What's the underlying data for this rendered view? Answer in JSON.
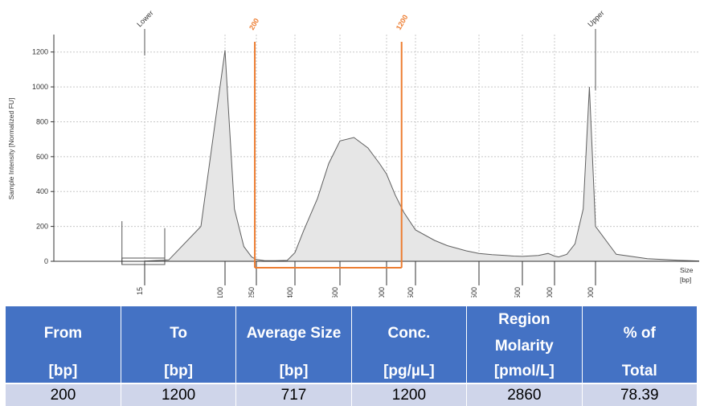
{
  "chart_data": {
    "type": "area",
    "xlabel_line1": "Size",
    "xlabel_line2": "[bp]",
    "ylabel": "Sample Intensity [Normalized FU]",
    "yticks": [
      0,
      200,
      400,
      600,
      800,
      1000,
      1200
    ],
    "ylim": [
      0,
      1300
    ],
    "xticks": [
      "15",
      "100",
      "250",
      "400",
      "600",
      "1000",
      "1500",
      "2500",
      "3500",
      "5000",
      "10000"
    ],
    "grid": true,
    "markers": [
      {
        "label": "Lower",
        "position": "15"
      },
      {
        "label": "Upper",
        "position": "10000"
      }
    ],
    "region": {
      "from_label": "200",
      "to_label": "1200",
      "color": "#ed7d31"
    },
    "series": [
      {
        "tick_positions": [
          0,
          0.3,
          0.7,
          1,
          1.1,
          1.3,
          1.6,
          1.85,
          2,
          2.2,
          2.5,
          2.8,
          3,
          3.2,
          3.5,
          3.75,
          4,
          4.3,
          4.6,
          4.85,
          5,
          5.3,
          5.6,
          6,
          6.3,
          6.5,
          6.8,
          7,
          7.3,
          7.5,
          7.8,
          8,
          8.5,
          8.8,
          9,
          9.1,
          9.3,
          9.5,
          9.7,
          9.85,
          10,
          10.2,
          10.5,
          10.8,
          11
        ],
        "y": [
          1,
          8,
          200,
          1210,
          900,
          300,
          85,
          25,
          10,
          4,
          3,
          5,
          50,
          180,
          360,
          560,
          690,
          710,
          650,
          560,
          500,
          380,
          280,
          180,
          120,
          90,
          60,
          45,
          38,
          35,
          30,
          28,
          33,
          45,
          30,
          25,
          40,
          100,
          300,
          1000,
          200,
          40,
          15,
          6,
          2
        ]
      }
    ]
  },
  "table": {
    "headers": [
      [
        "From",
        "[bp]"
      ],
      [
        "To",
        "[bp]"
      ],
      [
        "Average Size",
        "[bp]"
      ],
      [
        "Conc.",
        "[pg/µL]"
      ],
      [
        "Region Molarity",
        "[pmol/L]"
      ],
      [
        "% of",
        "Total"
      ]
    ],
    "row": [
      "200",
      "1200",
      "717",
      "1200",
      "2860",
      "78.39"
    ]
  }
}
